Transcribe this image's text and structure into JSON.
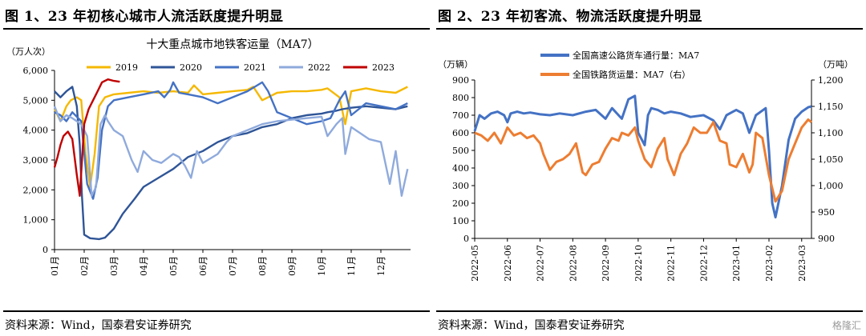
{
  "left": {
    "figure_title": "图 1、23 年初核心城市人流活跃度提升明显",
    "source": "资料来源：Wind，国泰君安证券研究"
  },
  "right": {
    "figure_title": "图 2、23 年初客流、物流活跃度提升明显",
    "source": "资料来源：Wind，国泰君安证券研究"
  },
  "watermark": "格隆汇",
  "chart_data": [
    {
      "type": "line",
      "title": "十大重点城市地铁客运量（MA7）",
      "ylabel": "（万人次）",
      "ylim": [
        0,
        6000
      ],
      "yticks": [
        "0",
        "1,000",
        "2,000",
        "3,000",
        "4,000",
        "5,000",
        "6,000"
      ],
      "x_type": "month_index",
      "xlim": [
        0,
        12
      ],
      "x_tick_labels": [
        "01月",
        "02月",
        "03月",
        "04月",
        "05月",
        "06月",
        "07月",
        "08月",
        "09月",
        "10月",
        "11月",
        "12月"
      ],
      "grid": false,
      "legend": "top",
      "series": [
        {
          "name": "2019",
          "color": "#F5B800",
          "x": [
            0,
            0.2,
            0.4,
            0.55,
            0.75,
            0.9,
            1.05,
            1.2,
            1.35,
            1.5,
            1.7,
            2.0,
            2.5,
            3.0,
            3.5,
            4.0,
            4.5,
            4.7,
            5.0,
            5.5,
            6.0,
            6.5,
            6.7,
            7.0,
            7.5,
            8.0,
            8.5,
            9.0,
            9.2,
            9.6,
            9.8,
            10.0,
            10.5,
            11.0,
            11.5,
            11.9
          ],
          "y": [
            4700,
            4300,
            4800,
            5000,
            5100,
            5000,
            3200,
            2100,
            3200,
            4800,
            5100,
            5200,
            5250,
            5300,
            5250,
            5300,
            5250,
            5500,
            5200,
            5250,
            5300,
            5350,
            5450,
            5000,
            5250,
            5300,
            5300,
            5350,
            5400,
            5100,
            4200,
            5300,
            5400,
            5300,
            5250,
            5450
          ]
        },
        {
          "name": "2020",
          "color": "#2F5597",
          "x": [
            0,
            0.2,
            0.4,
            0.6,
            0.75,
            0.85,
            0.92,
            1.0,
            1.2,
            1.5,
            1.7,
            2.0,
            2.3,
            2.7,
            3.0,
            3.5,
            4.0,
            4.5,
            5.0,
            5.5,
            6.0,
            6.5,
            7.0,
            7.5,
            8.0,
            8.5,
            9.0,
            9.2,
            9.5,
            9.7,
            10.0,
            10.5,
            11.0,
            11.5,
            11.9
          ],
          "y": [
            5300,
            5100,
            5300,
            5450,
            4800,
            3500,
            1900,
            500,
            380,
            350,
            400,
            700,
            1200,
            1700,
            2100,
            2400,
            2700,
            3100,
            3300,
            3600,
            3800,
            3900,
            4100,
            4200,
            4400,
            4500,
            4550,
            4600,
            4650,
            4700,
            4750,
            4800,
            4750,
            4700,
            4800
          ]
        },
        {
          "name": "2021",
          "color": "#4472C4",
          "x": [
            0,
            0.2,
            0.4,
            0.6,
            0.9,
            1.1,
            1.3,
            1.45,
            1.6,
            1.8,
            2.0,
            2.5,
            3.0,
            3.5,
            3.7,
            3.9,
            4.0,
            4.2,
            4.5,
            5.0,
            5.5,
            6.0,
            6.5,
            7.0,
            7.2,
            7.5,
            8.0,
            8.5,
            9.0,
            9.3,
            9.6,
            9.8,
            10.0,
            10.5,
            11.0,
            11.5,
            11.9
          ],
          "y": [
            4600,
            4500,
            4300,
            4600,
            4300,
            2200,
            1700,
            2400,
            4000,
            4800,
            5000,
            5100,
            5200,
            5300,
            5100,
            5350,
            5600,
            5250,
            5200,
            5100,
            4900,
            5100,
            5300,
            5600,
            5300,
            4600,
            4400,
            4200,
            4300,
            4400,
            5000,
            5300,
            4500,
            4900,
            4800,
            4700,
            4900
          ]
        },
        {
          "name": "2022",
          "color": "#8FAADC",
          "x": [
            0,
            0.2,
            0.4,
            0.6,
            0.9,
            1.1,
            1.25,
            1.4,
            1.55,
            1.7,
            1.8,
            2.0,
            2.3,
            2.6,
            2.8,
            3.0,
            3.3,
            3.6,
            4.0,
            4.2,
            4.4,
            4.6,
            4.8,
            5.0,
            5.5,
            5.8,
            6.0,
            6.5,
            7.0,
            7.5,
            8.0,
            8.5,
            9.0,
            9.2,
            9.5,
            9.7,
            9.8,
            10.0,
            10.3,
            10.6,
            11.0,
            11.3,
            11.5,
            11.7,
            11.9
          ],
          "y": [
            4800,
            4300,
            4500,
            4400,
            4200,
            3800,
            1800,
            2100,
            4200,
            4500,
            4300,
            4000,
            3800,
            3000,
            2600,
            3300,
            3000,
            2900,
            3200,
            3100,
            2800,
            2400,
            3300,
            2900,
            3200,
            3600,
            3800,
            4000,
            4200,
            4300,
            4350,
            4400,
            4450,
            3800,
            4200,
            4400,
            3200,
            4100,
            3900,
            3700,
            3600,
            2200,
            3300,
            1800,
            2700
          ]
        },
        {
          "name": "2023",
          "color": "#C00000",
          "x": [
            0,
            0.1,
            0.2,
            0.3,
            0.45,
            0.6,
            0.75,
            0.85,
            1.0,
            1.15,
            1.3,
            1.45,
            1.6,
            1.8,
            2.0,
            2.2
          ],
          "y": [
            2750,
            3100,
            3500,
            3800,
            3950,
            3700,
            2500,
            1800,
            4200,
            4700,
            5000,
            5300,
            5600,
            5700,
            5650,
            5620
          ]
        }
      ]
    },
    {
      "type": "line",
      "title": "",
      "ylabel": "（万辆）",
      "y2label": "（万吨）",
      "ylim": [
        0,
        900
      ],
      "yticks": [
        "0",
        "100",
        "200",
        "300",
        "400",
        "500",
        "600",
        "700",
        "800",
        "900"
      ],
      "y2lim": [
        900,
        1200
      ],
      "y2ticks": [
        "900",
        "950",
        "1,000",
        "1,050",
        "1,100",
        "1,150",
        "1,200"
      ],
      "x_type": "month_index",
      "xlim": [
        0,
        10.3
      ],
      "x_tick_labels": [
        "2022-05",
        "2022-06",
        "2022-07",
        "2022-08",
        "2022-09",
        "2022-10",
        "2022-11",
        "2022-12",
        "2023-01",
        "2023-02",
        "2023-03"
      ],
      "grid": false,
      "legend": "top",
      "series": [
        {
          "name": "全国高速公路货车通行量：MA7",
          "color": "#4472C4",
          "axis": "left",
          "x": [
            0,
            0.15,
            0.3,
            0.5,
            0.7,
            0.9,
            1.0,
            1.1,
            1.3,
            1.5,
            1.7,
            2.0,
            2.3,
            2.6,
            3.0,
            3.4,
            3.7,
            4.0,
            4.2,
            4.4,
            4.5,
            4.7,
            4.9,
            5.0,
            5.2,
            5.3,
            5.4,
            5.6,
            5.8,
            6.0,
            6.3,
            6.6,
            7.0,
            7.3,
            7.5,
            7.7,
            7.9,
            8.0,
            8.2,
            8.4,
            8.6,
            8.9,
            9.0,
            9.1,
            9.2,
            9.4,
            9.6,
            9.8,
            10.0,
            10.2,
            10.3
          ],
          "y": [
            610,
            700,
            680,
            710,
            720,
            700,
            660,
            710,
            720,
            710,
            715,
            705,
            700,
            710,
            700,
            720,
            730,
            680,
            740,
            700,
            680,
            790,
            810,
            600,
            530,
            700,
            740,
            730,
            710,
            720,
            710,
            690,
            700,
            670,
            620,
            700,
            720,
            730,
            710,
            600,
            700,
            740,
            500,
            200,
            120,
            300,
            560,
            680,
            720,
            745,
            750
          ]
        },
        {
          "name": "全国铁路货运量：MA7（右）",
          "color": "#ED7D31",
          "axis": "right",
          "x": [
            0,
            0.2,
            0.4,
            0.6,
            0.8,
            1.0,
            1.2,
            1.4,
            1.6,
            1.8,
            2.0,
            2.1,
            2.3,
            2.5,
            2.7,
            2.9,
            3.1,
            3.3,
            3.4,
            3.6,
            3.8,
            4.0,
            4.2,
            4.4,
            4.5,
            4.7,
            4.9,
            5.0,
            5.2,
            5.4,
            5.6,
            5.8,
            5.9,
            6.1,
            6.3,
            6.5,
            6.7,
            6.9,
            7.1,
            7.3,
            7.5,
            7.7,
            7.8,
            8.0,
            8.2,
            8.4,
            8.5,
            8.6,
            8.8,
            9.0,
            9.2,
            9.4,
            9.6,
            9.8,
            10.0,
            10.2,
            10.3
          ],
          "y": [
            1100,
            1095,
            1085,
            1100,
            1080,
            1110,
            1095,
            1100,
            1090,
            1095,
            1080,
            1060,
            1030,
            1045,
            1050,
            1060,
            1080,
            1025,
            1020,
            1040,
            1045,
            1070,
            1090,
            1085,
            1100,
            1095,
            1110,
            1085,
            1050,
            1035,
            1070,
            1090,
            1050,
            1020,
            1060,
            1080,
            1110,
            1100,
            1100,
            1120,
            1085,
            1080,
            1040,
            1035,
            1060,
            1025,
            1040,
            1100,
            1090,
            1020,
            970,
            990,
            1050,
            1080,
            1110,
            1125,
            1120
          ]
        }
      ]
    }
  ]
}
